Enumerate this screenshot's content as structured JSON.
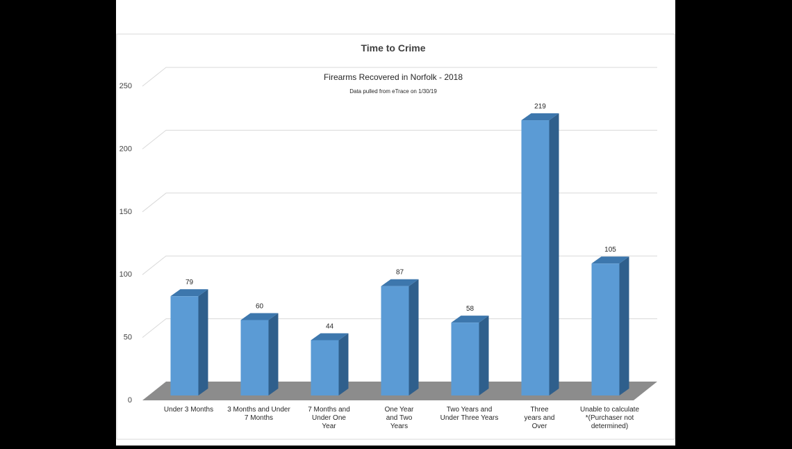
{
  "chart_data": {
    "type": "bar",
    "title": "Time to Crime",
    "subtitle": "Firearms Recovered in Norfolk - 2018",
    "note": "Data pulled from eTrace on 1/30/19",
    "categories": [
      [
        "Under 3 Months"
      ],
      [
        "3 Months and Under",
        "7 Months"
      ],
      [
        "7 Months and",
        "Under One",
        "Year"
      ],
      [
        "One Year",
        "and Two",
        "Years"
      ],
      [
        "Two Years and",
        "Under Three Years"
      ],
      [
        "Three",
        "years and",
        "Over"
      ],
      [
        "Unable to calculate",
        "*(Purchaser not",
        "determined)"
      ]
    ],
    "values": [
      79,
      60,
      44,
      87,
      58,
      219,
      105
    ],
    "data_labels": [
      "79",
      "60",
      "44",
      "87",
      "58",
      "219",
      "105"
    ],
    "yticks": [
      0,
      50,
      100,
      150,
      200,
      250
    ],
    "ytick_labels": [
      "0",
      "50",
      "100",
      "150",
      "200",
      "250"
    ],
    "ylim": [
      0,
      250
    ],
    "grid": true,
    "legend": "none",
    "colors": {
      "bar_front": "#5b9bd5",
      "bar_top": "#3d77ad",
      "bar_side": "#2f5f8c",
      "floor": "#8c8c8c",
      "gridline": "#d9d9d9",
      "panel": "#ffffff",
      "background": "#000000"
    }
  }
}
